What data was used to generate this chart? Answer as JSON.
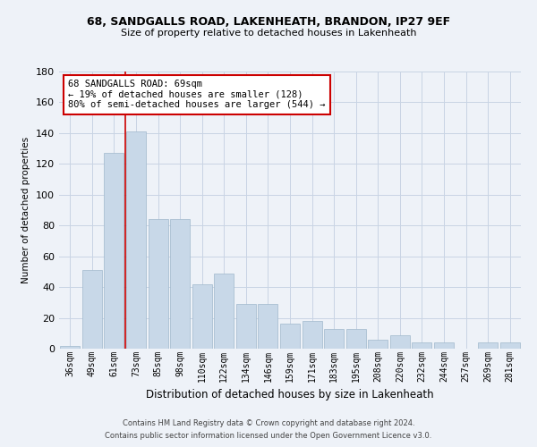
{
  "title1": "68, SANDGALLS ROAD, LAKENHEATH, BRANDON, IP27 9EF",
  "title2": "Size of property relative to detached houses in Lakenheath",
  "xlabel": "Distribution of detached houses by size in Lakenheath",
  "ylabel": "Number of detached properties",
  "categories": [
    "36sqm",
    "49sqm",
    "61sqm",
    "73sqm",
    "85sqm",
    "98sqm",
    "110sqm",
    "122sqm",
    "134sqm",
    "146sqm",
    "159sqm",
    "171sqm",
    "183sqm",
    "195sqm",
    "208sqm",
    "220sqm",
    "232sqm",
    "244sqm",
    "257sqm",
    "269sqm",
    "281sqm"
  ],
  "values": [
    2,
    51,
    127,
    141,
    84,
    84,
    42,
    49,
    29,
    29,
    16,
    18,
    13,
    13,
    6,
    9,
    4,
    4,
    0,
    4,
    4
  ],
  "bar_color": "#c8d8e8",
  "bar_edge_color": "#a0b8cc",
  "grid_color": "#c8d4e4",
  "vline_color": "#cc0000",
  "vline_x_index": 2,
  "annotation_text": "68 SANDGALLS ROAD: 69sqm\n← 19% of detached houses are smaller (128)\n80% of semi-detached houses are larger (544) →",
  "annotation_box_color": "#ffffff",
  "annotation_box_edge": "#cc0000",
  "footer1": "Contains HM Land Registry data © Crown copyright and database right 2024.",
  "footer2": "Contains public sector information licensed under the Open Government Licence v3.0.",
  "ylim": [
    0,
    180
  ],
  "yticks": [
    0,
    20,
    40,
    60,
    80,
    100,
    120,
    140,
    160,
    180
  ],
  "background_color": "#eef2f8"
}
